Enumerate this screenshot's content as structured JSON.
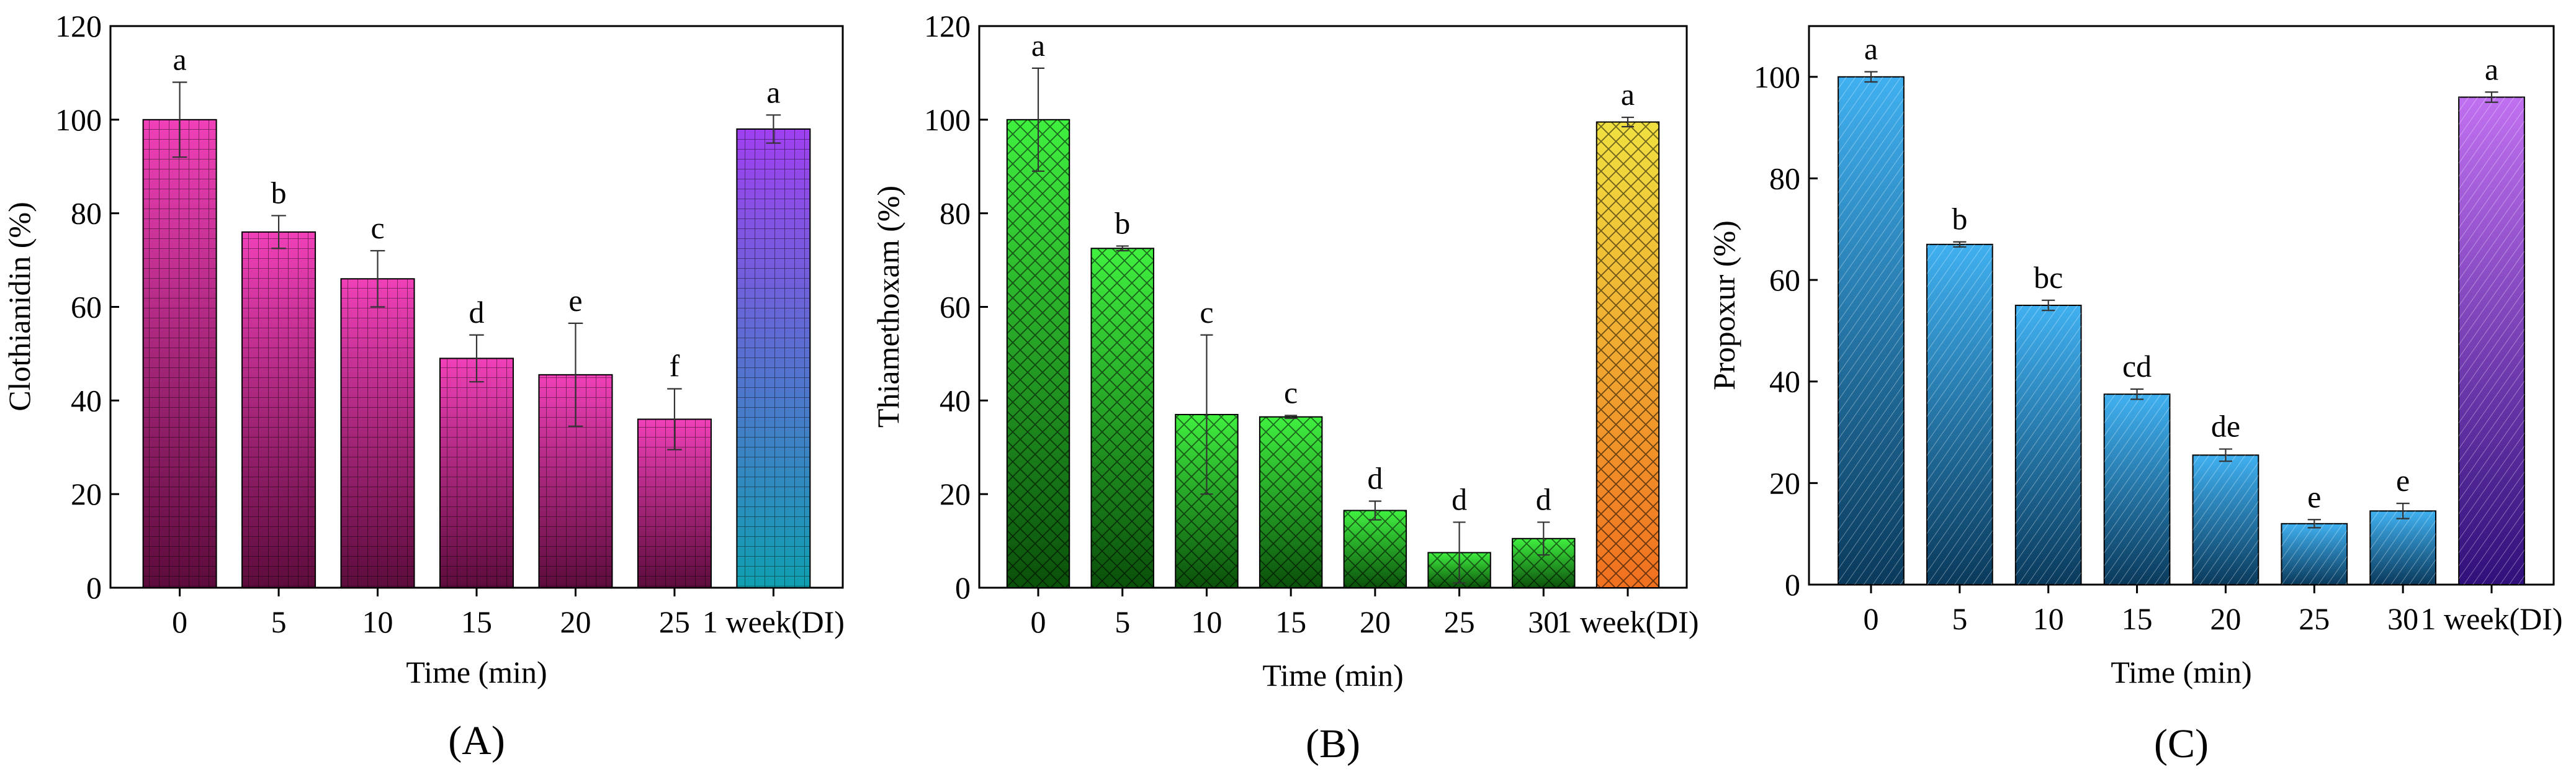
{
  "chart_data": [
    {
      "type": "bar",
      "panel_label": "(A)",
      "xlabel": "Time (min)",
      "ylabel": "Clothianidin (%)",
      "ylim": [
        0,
        120
      ],
      "yticks": [
        0,
        20,
        40,
        60,
        80,
        100,
        120
      ],
      "categories": [
        "0",
        "5",
        "10",
        "15",
        "20",
        "25",
        "1 week(DI)"
      ],
      "values": [
        100,
        76,
        66,
        49,
        45.5,
        36,
        98
      ],
      "errors": [
        8,
        3.5,
        6,
        5,
        11,
        6.5,
        3
      ],
      "letters": [
        "a",
        "b",
        "c",
        "d",
        "e",
        "f",
        "a"
      ],
      "fill": {
        "pattern": "grid",
        "series_top": "#f040b8",
        "series_bottom": "#5c0c3c",
        "last_top": "#a040f0",
        "last_bottom": "#10a0b0"
      }
    },
    {
      "type": "bar",
      "panel_label": "(B)",
      "xlabel": "Time (min)",
      "ylabel": "Thiamethoxam (%)",
      "ylim": [
        0,
        120
      ],
      "yticks": [
        0,
        20,
        40,
        60,
        80,
        100,
        120
      ],
      "categories": [
        "0",
        "5",
        "10",
        "15",
        "20",
        "25",
        "30",
        "1 week(DI)"
      ],
      "values": [
        100,
        72.5,
        37,
        36.5,
        16.5,
        7.5,
        10.5,
        99.5
      ],
      "errors": [
        11,
        0.5,
        17,
        0.3,
        2,
        6.5,
        3.5,
        1
      ],
      "letters": [
        "a",
        "b",
        "c",
        "c",
        "d",
        "d",
        "d",
        "a"
      ],
      "fill": {
        "pattern": "crosshatch",
        "series_top": "#40f040",
        "series_bottom": "#0a500a",
        "last_top": "#f0e040",
        "last_bottom": "#f07020"
      }
    },
    {
      "type": "bar",
      "panel_label": "(C)",
      "xlabel": "Time (min)",
      "ylabel": "Propoxur (%)",
      "ylim": [
        0,
        110
      ],
      "yticks": [
        0,
        20,
        40,
        60,
        80,
        100
      ],
      "categories": [
        "0",
        "5",
        "10",
        "15",
        "20",
        "25",
        "30",
        "1 week(DI)"
      ],
      "values": [
        100,
        67,
        55,
        37.5,
        25.5,
        12,
        14.5,
        96
      ],
      "errors": [
        1,
        0.5,
        1,
        1,
        1.2,
        0.8,
        1.5,
        1
      ],
      "letters": [
        "a",
        "b",
        "bc",
        "cd",
        "de",
        "e",
        "e",
        "a"
      ],
      "fill": {
        "pattern": "diagonal",
        "series_top": "#40b0f0",
        "series_bottom": "#0a3a5c",
        "last_top": "#c070f0",
        "last_bottom": "#30107a"
      }
    }
  ]
}
